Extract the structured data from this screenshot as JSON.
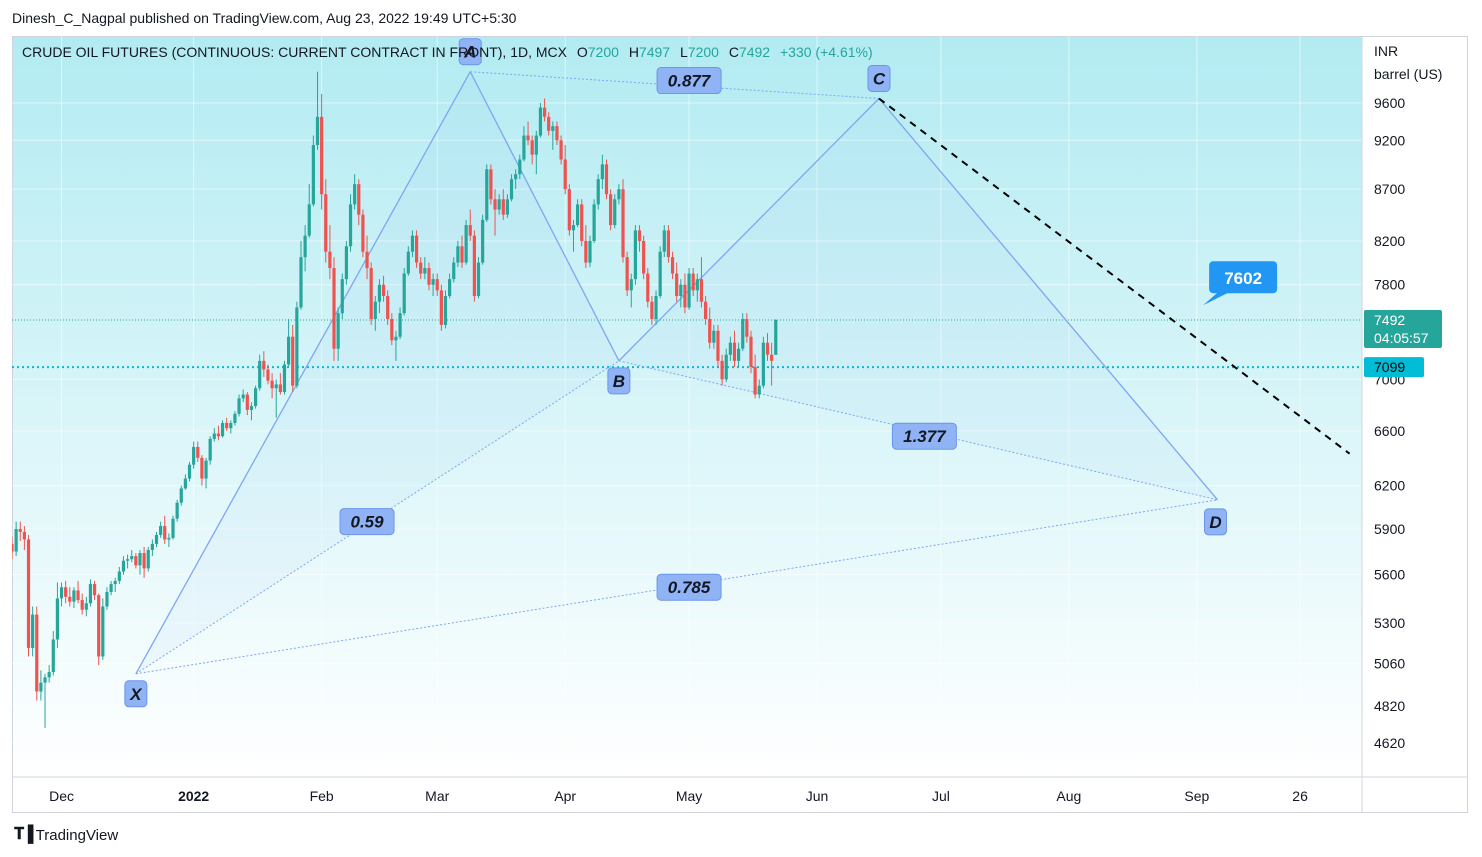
{
  "publish_line": "Dinesh_C_Nagpal published on TradingView.com, Aug 23, 2022 19:49 UTC+5:30",
  "legend": {
    "symbol": "CRUDE OIL FUTURES (CONTINUOUS: CURRENT CONTRACT IN FRONT), 1D, MCX",
    "o_label": "O",
    "o": "7200",
    "h_label": "H",
    "h": "7497",
    "l_label": "L",
    "l": "7200",
    "c_label": "C",
    "c": "7492",
    "change": "+330 (+4.61%)"
  },
  "axis_unit": [
    "INR",
    "barrel (US)"
  ],
  "price_badge": {
    "price": "7492",
    "countdown": "04:05:57",
    "color": "#26a69a"
  },
  "hline_badge": {
    "price": "7099",
    "color": "#00bcd4"
  },
  "footer": "TradingView",
  "colors": {
    "up": "#26a69a",
    "down": "#ef5350",
    "pattern": "#7fa6f0",
    "label_bg": "#8fb3f5"
  },
  "chart_data": {
    "type": "candlestick",
    "x_ticks": [
      {
        "label": "Dec",
        "t": 20
      },
      {
        "label": "2022",
        "t": 52
      },
      {
        "label": "Feb",
        "t": 83
      },
      {
        "label": "Mar",
        "t": 111
      },
      {
        "label": "Apr",
        "t": 142
      },
      {
        "label": "May",
        "t": 172
      },
      {
        "label": "Jun",
        "t": 203
      },
      {
        "label": "Jul",
        "t": 233
      },
      {
        "label": "Aug",
        "t": 264
      },
      {
        "label": "Sep",
        "t": 295
      },
      {
        "label": "26",
        "t": 320
      }
    ],
    "y_ticks": [
      4620,
      4820,
      5060,
      5300,
      5600,
      5900,
      6200,
      6600,
      7000,
      7800,
      8200,
      8700,
      9200,
      9600
    ],
    "scale": "log",
    "ylim": [
      4500,
      10200
    ],
    "xlim": [
      8,
      335
    ],
    "last_close": 7492,
    "horizontal_line": 7099,
    "pattern": {
      "points": [
        {
          "name": "X",
          "t": 38,
          "price": 5000
        },
        {
          "name": "A",
          "t": 119,
          "price": 9950
        },
        {
          "name": "B",
          "t": 155,
          "price": 7150
        },
        {
          "name": "C",
          "t": 218,
          "price": 9650
        },
        {
          "name": "D",
          "t": 300,
          "price": 6100
        }
      ],
      "ratios": [
        {
          "label": "0.59",
          "between": [
            "X",
            "B"
          ],
          "t": 94,
          "price": 5950
        },
        {
          "label": "0.877",
          "between": [
            "A",
            "C"
          ],
          "t": 172,
          "price": 9850
        },
        {
          "label": "1.377",
          "between": [
            "B",
            "D"
          ],
          "t": 229,
          "price": 6560
        },
        {
          "label": "0.785",
          "between": [
            "X",
            "D"
          ],
          "t": 172,
          "price": 5520
        }
      ]
    },
    "trendline": {
      "from": {
        "t": 218,
        "price": 9650
      },
      "to": {
        "t": 332,
        "price": 6430
      }
    },
    "target_label": {
      "label": "7602",
      "t": 297,
      "price": 7602
    },
    "candles": [
      [
        8,
        5800,
        5850,
        5700,
        5750
      ],
      [
        9,
        5750,
        5950,
        5720,
        5900
      ],
      [
        10,
        5900,
        5950,
        5820,
        5880
      ],
      [
        11,
        5880,
        5920,
        5760,
        5830
      ],
      [
        12,
        5830,
        5860,
        5100,
        5150
      ],
      [
        13,
        5150,
        5400,
        5100,
        5350
      ],
      [
        14,
        5350,
        5400,
        4850,
        4900
      ],
      [
        15,
        4900,
        5020,
        4850,
        4950
      ],
      [
        16,
        4950,
        5000,
        4700,
        4980
      ],
      [
        17,
        4980,
        5050,
        4950,
        5010
      ],
      [
        18,
        5010,
        5250,
        4990,
        5200
      ],
      [
        19,
        5200,
        5550,
        5150,
        5450
      ],
      [
        20,
        5450,
        5550,
        5400,
        5520
      ],
      [
        21,
        5520,
        5560,
        5420,
        5460
      ],
      [
        22,
        5460,
        5520,
        5400,
        5430
      ],
      [
        23,
        5430,
        5520,
        5390,
        5500
      ],
      [
        24,
        5500,
        5560,
        5420,
        5440
      ],
      [
        25,
        5440,
        5480,
        5350,
        5380
      ],
      [
        26,
        5380,
        5460,
        5340,
        5420
      ],
      [
        27,
        5420,
        5570,
        5400,
        5540
      ],
      [
        28,
        5540,
        5560,
        5440,
        5470
      ],
      [
        29,
        5470,
        5480,
        5050,
        5100
      ],
      [
        30,
        5100,
        5450,
        5080,
        5400
      ],
      [
        31,
        5400,
        5520,
        5380,
        5490
      ],
      [
        32,
        5490,
        5560,
        5470,
        5540
      ],
      [
        33,
        5540,
        5580,
        5490,
        5560
      ],
      [
        34,
        5560,
        5650,
        5540,
        5620
      ],
      [
        35,
        5620,
        5720,
        5600,
        5690
      ],
      [
        36,
        5690,
        5730,
        5640,
        5700
      ],
      [
        37,
        5700,
        5760,
        5680,
        5720
      ],
      [
        38,
        5720,
        5740,
        5640,
        5660
      ],
      [
        39,
        5660,
        5760,
        5600,
        5740
      ],
      [
        40,
        5740,
        5780,
        5580,
        5640
      ],
      [
        41,
        5640,
        5780,
        5620,
        5760
      ],
      [
        42,
        5760,
        5830,
        5720,
        5800
      ],
      [
        43,
        5800,
        5880,
        5780,
        5860
      ],
      [
        44,
        5860,
        5950,
        5840,
        5920
      ],
      [
        45,
        5920,
        5990,
        5800,
        5830
      ],
      [
        46,
        5830,
        5870,
        5780,
        5840
      ],
      [
        47,
        5840,
        5990,
        5830,
        5970
      ],
      [
        48,
        5970,
        6100,
        5950,
        6080
      ],
      [
        49,
        6080,
        6200,
        6060,
        6180
      ],
      [
        50,
        6180,
        6280,
        6170,
        6250
      ],
      [
        51,
        6250,
        6370,
        6230,
        6350
      ],
      [
        52,
        6350,
        6520,
        6320,
        6480
      ],
      [
        53,
        6480,
        6520,
        6370,
        6400
      ],
      [
        54,
        6400,
        6420,
        6200,
        6250
      ],
      [
        55,
        6250,
        6400,
        6180,
        6380
      ],
      [
        56,
        6380,
        6560,
        6350,
        6540
      ],
      [
        57,
        6540,
        6620,
        6520,
        6580
      ],
      [
        58,
        6580,
        6640,
        6530,
        6560
      ],
      [
        59,
        6560,
        6680,
        6550,
        6660
      ],
      [
        60,
        6660,
        6700,
        6600,
        6620
      ],
      [
        61,
        6620,
        6680,
        6580,
        6660
      ],
      [
        62,
        6660,
        6750,
        6640,
        6730
      ],
      [
        63,
        6730,
        6880,
        6710,
        6850
      ],
      [
        64,
        6850,
        6920,
        6820,
        6880
      ],
      [
        65,
        6880,
        6900,
        6720,
        6760
      ],
      [
        66,
        6760,
        6820,
        6680,
        6790
      ],
      [
        67,
        6790,
        6950,
        6770,
        6930
      ],
      [
        68,
        6930,
        7200,
        6910,
        7150
      ],
      [
        69,
        7150,
        7230,
        7020,
        7080
      ],
      [
        70,
        7080,
        7120,
        6960,
        6990
      ],
      [
        71,
        6990,
        7050,
        6850,
        6930
      ],
      [
        72,
        6930,
        7000,
        6700,
        6960
      ],
      [
        73,
        6960,
        7050,
        6880,
        6900
      ],
      [
        74,
        6900,
        7150,
        6880,
        7120
      ],
      [
        75,
        7120,
        7500,
        7100,
        7350
      ],
      [
        76,
        7350,
        7450,
        6900,
        6950
      ],
      [
        77,
        6950,
        7650,
        6930,
        7600
      ],
      [
        78,
        7600,
        8200,
        7580,
        8050
      ],
      [
        79,
        8050,
        8350,
        7920,
        8250
      ],
      [
        80,
        8250,
        8750,
        8230,
        8550
      ],
      [
        81,
        8550,
        9250,
        8530,
        9150
      ],
      [
        82,
        9150,
        9950,
        9100,
        9450
      ],
      [
        83,
        9450,
        9700,
        8500,
        8650
      ],
      [
        84,
        8650,
        8800,
        8000,
        8100
      ],
      [
        85,
        8100,
        8350,
        7850,
        7950
      ],
      [
        86,
        7950,
        8050,
        7150,
        7250
      ],
      [
        87,
        7250,
        7600,
        7150,
        7550
      ],
      [
        88,
        7550,
        7900,
        7500,
        7850
      ],
      [
        89,
        7850,
        8200,
        7800,
        8150
      ],
      [
        90,
        8150,
        8650,
        8100,
        8550
      ],
      [
        91,
        8550,
        8850,
        8500,
        8750
      ],
      [
        92,
        8750,
        8800,
        8350,
        8450
      ],
      [
        93,
        8450,
        8500,
        8050,
        8100
      ],
      [
        94,
        8100,
        8250,
        7850,
        7950
      ],
      [
        95,
        7950,
        8000,
        7450,
        7500
      ],
      [
        96,
        7500,
        7700,
        7400,
        7650
      ],
      [
        97,
        7650,
        7850,
        7550,
        7800
      ],
      [
        98,
        7800,
        7880,
        7650,
        7700
      ],
      [
        99,
        7700,
        7750,
        7450,
        7500
      ],
      [
        100,
        7500,
        7550,
        7280,
        7320
      ],
      [
        101,
        7320,
        7400,
        7150,
        7350
      ],
      [
        102,
        7350,
        7600,
        7330,
        7550
      ],
      [
        103,
        7550,
        7950,
        7530,
        7900
      ],
      [
        104,
        7900,
        8150,
        7880,
        8100
      ],
      [
        105,
        8100,
        8300,
        8050,
        8250
      ],
      [
        106,
        8250,
        8300,
        7950,
        8000
      ],
      [
        107,
        8000,
        8050,
        7850,
        7900
      ],
      [
        108,
        7900,
        8050,
        7850,
        7950
      ],
      [
        109,
        7950,
        8000,
        7750,
        7800
      ],
      [
        110,
        7800,
        7900,
        7700,
        7850
      ],
      [
        111,
        7850,
        7900,
        7700,
        7750
      ],
      [
        112,
        7750,
        7800,
        7400,
        7450
      ],
      [
        113,
        7450,
        7750,
        7420,
        7700
      ],
      [
        114,
        7700,
        7900,
        7680,
        7850
      ],
      [
        115,
        7850,
        8050,
        7820,
        8000
      ],
      [
        116,
        8000,
        8200,
        7960,
        8150
      ],
      [
        117,
        8150,
        8250,
        7950,
        8000
      ],
      [
        118,
        8000,
        8400,
        7980,
        8350
      ],
      [
        119,
        8350,
        8500,
        8200,
        8250
      ],
      [
        120,
        8250,
        8300,
        7650,
        7700
      ],
      [
        121,
        7700,
        8050,
        7680,
        8000
      ],
      [
        122,
        8000,
        8450,
        7980,
        8400
      ],
      [
        123,
        8400,
        8950,
        8380,
        8900
      ],
      [
        124,
        8900,
        8950,
        8550,
        8600
      ],
      [
        125,
        8600,
        8700,
        8250,
        8500
      ],
      [
        126,
        8500,
        8650,
        8450,
        8600
      ],
      [
        127,
        8600,
        8700,
        8400,
        8450
      ],
      [
        128,
        8450,
        8650,
        8420,
        8600
      ],
      [
        129,
        8600,
        8850,
        8580,
        8800
      ],
      [
        130,
        8800,
        8900,
        8700,
        8850
      ],
      [
        131,
        8850,
        9050,
        8800,
        9000
      ],
      [
        132,
        9000,
        9350,
        8980,
        9250
      ],
      [
        133,
        9250,
        9400,
        9150,
        9200
      ],
      [
        134,
        9200,
        9250,
        8950,
        9050
      ],
      [
        135,
        9050,
        9300,
        8850,
        9250
      ],
      [
        136,
        9250,
        9600,
        9230,
        9550
      ],
      [
        137,
        9550,
        9650,
        9400,
        9450
      ],
      [
        138,
        9450,
        9500,
        9250,
        9300
      ],
      [
        139,
        9300,
        9400,
        9100,
        9350
      ],
      [
        140,
        9350,
        9400,
        9150,
        9200
      ],
      [
        141,
        9200,
        9250,
        8950,
        9000
      ],
      [
        142,
        9000,
        9150,
        8650,
        8700
      ],
      [
        143,
        8700,
        8750,
        8250,
        8300
      ],
      [
        144,
        8300,
        8400,
        8100,
        8350
      ],
      [
        145,
        8350,
        8600,
        8330,
        8550
      ],
      [
        146,
        8550,
        8600,
        8150,
        8200
      ],
      [
        147,
        8200,
        8350,
        7950,
        8000
      ],
      [
        148,
        8000,
        8250,
        7960,
        8200
      ],
      [
        149,
        8200,
        8600,
        8180,
        8550
      ],
      [
        150,
        8550,
        8850,
        8500,
        8800
      ],
      [
        151,
        8800,
        9050,
        8700,
        8950
      ],
      [
        152,
        8950,
        9000,
        8600,
        8650
      ],
      [
        153,
        8650,
        8700,
        8300,
        8350
      ],
      [
        154,
        8350,
        8650,
        8320,
        8600
      ],
      [
        155,
        8600,
        8750,
        8550,
        8700
      ],
      [
        156,
        8700,
        8800,
        8000,
        8050
      ],
      [
        157,
        8050,
        8100,
        7700,
        7750
      ],
      [
        158,
        7750,
        7900,
        7600,
        7850
      ],
      [
        159,
        7850,
        8350,
        7800,
        8300
      ],
      [
        160,
        8300,
        8350,
        8100,
        8200
      ],
      [
        161,
        8200,
        8250,
        7850,
        7900
      ],
      [
        162,
        7900,
        7950,
        7600,
        7650
      ],
      [
        163,
        7650,
        7700,
        7450,
        7500
      ],
      [
        164,
        7500,
        7750,
        7450,
        7700
      ],
      [
        165,
        7700,
        8150,
        7680,
        8100
      ],
      [
        166,
        8100,
        8350,
        8050,
        8300
      ],
      [
        167,
        8300,
        8350,
        8000,
        8050
      ],
      [
        168,
        8050,
        8100,
        7850,
        7900
      ],
      [
        169,
        7900,
        8000,
        7650,
        7700
      ],
      [
        170,
        7700,
        7850,
        7600,
        7800
      ],
      [
        171,
        7800,
        7900,
        7550,
        7600
      ],
      [
        172,
        7600,
        7950,
        7580,
        7900
      ],
      [
        173,
        7900,
        7950,
        7700,
        7750
      ],
      [
        174,
        7750,
        7900,
        7650,
        7850
      ],
      [
        175,
        7850,
        8050,
        7600,
        7650
      ],
      [
        176,
        7650,
        7700,
        7450,
        7500
      ],
      [
        177,
        7500,
        7600,
        7250,
        7300
      ],
      [
        178,
        7300,
        7450,
        7250,
        7400
      ],
      [
        179,
        7400,
        7450,
        7100,
        7150
      ],
      [
        180,
        7150,
        7200,
        6950,
        7000
      ],
      [
        181,
        7000,
        7250,
        6980,
        7200
      ],
      [
        182,
        7200,
        7350,
        7150,
        7300
      ],
      [
        183,
        7300,
        7400,
        7100,
        7150
      ],
      [
        184,
        7150,
        7300,
        7100,
        7250
      ],
      [
        185,
        7250,
        7550,
        7230,
        7500
      ],
      [
        186,
        7500,
        7550,
        7300,
        7350
      ],
      [
        187,
        7350,
        7400,
        7050,
        7100
      ],
      [
        188,
        7100,
        7200,
        6850,
        6880
      ],
      [
        189,
        6880,
        7000,
        6850,
        6950
      ],
      [
        190,
        6950,
        7350,
        6930,
        7300
      ],
      [
        191,
        7300,
        7380,
        7150,
        7200
      ],
      [
        192,
        7200,
        7300,
        6950,
        7150
      ],
      [
        193,
        7200,
        7497,
        7200,
        7492
      ]
    ]
  }
}
